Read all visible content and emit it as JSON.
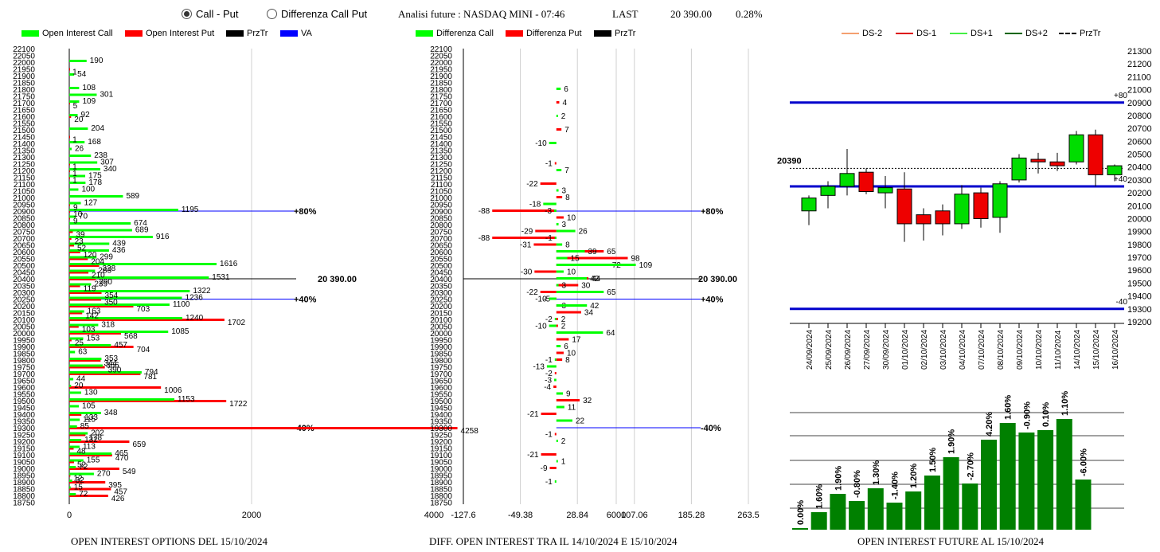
{
  "header": {
    "radio_call_put": "Call - Put",
    "radio_diff": "Differenza Call Put",
    "analisi": "Analisi future : NASDAQ MINI - 07:46",
    "last_label": "LAST",
    "last_value": "20 390.00",
    "last_pct": "0.28%"
  },
  "legend1": {
    "oi_call": "Open Interest Call",
    "oi_put": "Open Interest Put",
    "prztr": "PrzTr",
    "va": "VA"
  },
  "legend2": {
    "diff_call": "Differenza Call",
    "diff_put": "Differenza Put",
    "prztr": "PrzTr"
  },
  "legend3": {
    "ds_m2": "DS-2",
    "ds_m1": "DS-1",
    "ds_p1": "DS+1",
    "ds_p2": "DS+2",
    "prztr": "PrzTr"
  },
  "footer": {
    "left": "OPEN INTEREST OPTIONS DEL 15/10/2024",
    "center": "DIFF. OPEN INTEREST TRA IL 14/10/2024 E 15/10/2024",
    "right": "OPEN INTEREST FUTURE AL 15/10/2024"
  },
  "colors": {
    "call": "#00ff00",
    "put": "#ff0000",
    "va": "#0000ff",
    "bar": "#008000",
    "candle_up": "#00dd00",
    "candle_down": "#ee0000"
  },
  "chart_data": [
    {
      "type": "bar",
      "orientation": "horizontal",
      "strikes_ticks": [
        22100,
        22050,
        22000,
        21950,
        21900,
        21850,
        21800,
        21750,
        21700,
        21650,
        21600,
        21550,
        21500,
        21450,
        21400,
        21350,
        21300,
        21250,
        21200,
        21150,
        21100,
        21050,
        21000,
        20950,
        20900,
        20850,
        20800,
        20750,
        20700,
        20650,
        20600,
        20550,
        20500,
        20450,
        20400,
        20350,
        20300,
        20250,
        20200,
        20150,
        20100,
        20050,
        20000,
        19950,
        19900,
        19850,
        19800,
        19750,
        19700,
        19650,
        19600,
        19550,
        19500,
        19450,
        19400,
        19350,
        19300,
        19250,
        19200,
        19150,
        19100,
        19050,
        19000,
        18950,
        18900,
        18850,
        18800,
        18750
      ],
      "x_ticks": [
        "0",
        "2000",
        "4000",
        "6000"
      ],
      "xlim": [
        0,
        7000
      ],
      "call": [
        [
          22000,
          190
        ],
        [
          21900,
          54
        ],
        [
          21800,
          108
        ],
        [
          21750,
          301
        ],
        [
          21700,
          109
        ],
        [
          21600,
          92
        ],
        [
          21500,
          204
        ],
        [
          21400,
          168
        ],
        [
          21350,
          26
        ],
        [
          21300,
          238
        ],
        [
          21250,
          307
        ],
        [
          21200,
          340
        ],
        [
          21150,
          175
        ],
        [
          21100,
          178
        ],
        [
          21050,
          100
        ],
        [
          21000,
          589
        ],
        [
          20950,
          127
        ],
        [
          20900,
          1195
        ],
        [
          20850,
          70
        ],
        [
          20800,
          674
        ],
        [
          20750,
          689
        ],
        [
          20700,
          916
        ],
        [
          20650,
          439
        ],
        [
          20600,
          436
        ],
        [
          20550,
          299
        ],
        [
          20500,
          1616
        ],
        [
          20450,
          283
        ],
        [
          20400,
          1531
        ],
        [
          20350,
          239
        ],
        [
          20300,
          1322
        ],
        [
          20250,
          1236
        ],
        [
          20200,
          1100
        ],
        [
          20150,
          163
        ],
        [
          20100,
          1240
        ],
        [
          20050,
          318
        ],
        [
          20000,
          1085
        ],
        [
          19950,
          153
        ],
        [
          19900,
          457
        ],
        [
          19850,
          63
        ],
        [
          19800,
          353
        ],
        [
          19750,
          366
        ],
        [
          19700,
          794
        ],
        [
          19650,
          44
        ],
        [
          19600,
          20
        ],
        [
          19550,
          130
        ],
        [
          19500,
          1153
        ],
        [
          19450,
          105
        ],
        [
          19400,
          348
        ],
        [
          19350,
          115
        ],
        [
          19300,
          85
        ],
        [
          19250,
          202
        ],
        [
          19200,
          132
        ],
        [
          19150,
          113
        ],
        [
          19100,
          465
        ],
        [
          19050,
          155
        ],
        [
          19000,
          72
        ],
        [
          18950,
          270
        ],
        [
          18900,
          32
        ],
        [
          18850,
          15
        ],
        [
          18800,
          72
        ]
      ],
      "put": [
        [
          21950,
          1
        ],
        [
          21700,
          5
        ],
        [
          21600,
          20
        ],
        [
          21450,
          1
        ],
        [
          21250,
          1
        ],
        [
          21200,
          1
        ],
        [
          21150,
          1
        ],
        [
          20950,
          9
        ],
        [
          20900,
          10
        ],
        [
          20850,
          9
        ],
        [
          20750,
          39
        ],
        [
          20700,
          23
        ],
        [
          20650,
          52
        ],
        [
          20600,
          120
        ],
        [
          20550,
          204
        ],
        [
          20500,
          328
        ],
        [
          20450,
          210
        ],
        [
          20400,
          290
        ],
        [
          20350,
          119
        ],
        [
          20300,
          354
        ],
        [
          20250,
          350
        ],
        [
          20200,
          703
        ],
        [
          20150,
          142
        ],
        [
          20100,
          1702
        ],
        [
          20050,
          103
        ],
        [
          20000,
          568
        ],
        [
          19950,
          25
        ],
        [
          19900,
          704
        ],
        [
          19800,
          344
        ],
        [
          19750,
          390
        ],
        [
          19700,
          781
        ],
        [
          19600,
          1006
        ],
        [
          19500,
          1722
        ],
        [
          19400,
          133
        ],
        [
          19300,
          4258
        ],
        [
          19250,
          178
        ],
        [
          19200,
          659
        ],
        [
          19150,
          48
        ],
        [
          19100,
          470
        ],
        [
          19050,
          52
        ],
        [
          19000,
          549
        ],
        [
          18950,
          12
        ],
        [
          18900,
          395
        ],
        [
          18850,
          457
        ],
        [
          18800,
          426
        ]
      ],
      "lines": [
        {
          "strike": 20900,
          "label": "+80%",
          "color": "#0000ff"
        },
        {
          "strike": 20400,
          "label": "20 390.00",
          "color": "#000000"
        },
        {
          "strike": 20250,
          "label": "+40%",
          "color": "#0000ff"
        },
        {
          "strike": 19300,
          "label": "-40%",
          "color": "#0000ff"
        }
      ]
    },
    {
      "type": "bar",
      "orientation": "horizontal",
      "x_ticks": [
        "-127.6",
        "-49.38",
        "28.84",
        "107.06",
        "185.28",
        "263.5"
      ],
      "xlim": [
        -127.6,
        263.5
      ],
      "diff": [
        [
          21800,
          6
        ],
        [
          21700,
          4
        ],
        [
          21600,
          2
        ],
        [
          21500,
          7
        ],
        [
          21400,
          -10
        ],
        [
          21250,
          -1
        ],
        [
          21200,
          7
        ],
        [
          21100,
          -22
        ],
        [
          21050,
          3
        ],
        [
          21000,
          8
        ],
        [
          20950,
          -18
        ],
        [
          20900,
          -88
        ],
        [
          20900,
          -3
        ],
        [
          20850,
          10
        ],
        [
          20800,
          3
        ],
        [
          20750,
          -29
        ],
        [
          20750,
          26
        ],
        [
          20700,
          -88
        ],
        [
          20700,
          -1
        ],
        [
          20650,
          -31
        ],
        [
          20650,
          8
        ],
        [
          20600,
          65
        ],
        [
          20600,
          39
        ],
        [
          20550,
          98
        ],
        [
          20550,
          15
        ],
        [
          20500,
          72
        ],
        [
          20500,
          109
        ],
        [
          20450,
          -30
        ],
        [
          20450,
          10
        ],
        [
          20400,
          44
        ],
        [
          20400,
          42
        ],
        [
          20350,
          30
        ],
        [
          20350,
          3
        ],
        [
          20300,
          -22
        ],
        [
          20300,
          65
        ],
        [
          20250,
          -5
        ],
        [
          20250,
          -10
        ],
        [
          20200,
          3
        ],
        [
          20200,
          42
        ],
        [
          20150,
          34
        ],
        [
          20100,
          -2
        ],
        [
          20100,
          2
        ],
        [
          20050,
          -10
        ],
        [
          20050,
          2
        ],
        [
          20000,
          64
        ],
        [
          19950,
          17
        ],
        [
          19900,
          6
        ],
        [
          19850,
          10
        ],
        [
          19800,
          -1
        ],
        [
          19800,
          8
        ],
        [
          19750,
          -13
        ],
        [
          19700,
          -2
        ],
        [
          19650,
          -3
        ],
        [
          19600,
          -4
        ],
        [
          19550,
          9
        ],
        [
          19500,
          32
        ],
        [
          19450,
          11
        ],
        [
          19400,
          -21
        ],
        [
          19350,
          22
        ],
        [
          19250,
          -1
        ],
        [
          19200,
          2
        ],
        [
          19100,
          -21
        ],
        [
          19050,
          1
        ],
        [
          19000,
          -9
        ],
        [
          18900,
          -1
        ]
      ],
      "lines": [
        {
          "strike": 20900,
          "label": "+80%"
        },
        {
          "strike": 20400,
          "label": "20 390.00"
        },
        {
          "strike": 20250,
          "label": "+40%"
        },
        {
          "strike": 19300,
          "label": "-40%"
        }
      ]
    },
    {
      "type": "candlestick",
      "dates": [
        "24/09/2024",
        "25/09/2024",
        "26/09/2024",
        "27/09/2024",
        "30/09/2024",
        "01/10/2024",
        "02/10/2024",
        "03/10/2024",
        "04/10/2024",
        "07/10/2024",
        "08/10/2024",
        "09/10/2024",
        "10/10/2024",
        "11/10/2024",
        "14/10/2024",
        "15/10/2024",
        "16/10/2024"
      ],
      "ohlc": [
        [
          20060,
          20160,
          19950,
          20180
        ],
        [
          20180,
          20250,
          20080,
          20290
        ],
        [
          20250,
          20350,
          20180,
          20540
        ],
        [
          20360,
          20210,
          20190,
          20390
        ],
        [
          20200,
          20240,
          20080,
          20330
        ],
        [
          20230,
          19960,
          19820,
          20360
        ],
        [
          20030,
          19960,
          19830,
          20080
        ],
        [
          20060,
          19960,
          19870,
          20110
        ],
        [
          19960,
          20190,
          19920,
          20260
        ],
        [
          20200,
          20000,
          19930,
          20240
        ],
        [
          20010,
          20270,
          19890,
          20290
        ],
        [
          20300,
          20470,
          20280,
          20500
        ],
        [
          20460,
          20440,
          20350,
          20510
        ],
        [
          20440,
          20410,
          20370,
          20510
        ],
        [
          20440,
          20650,
          20420,
          20680
        ],
        [
          20650,
          20340,
          20250,
          20690
        ],
        [
          20340,
          20410,
          20290,
          20420
        ]
      ],
      "y_ticks": [
        21300,
        21200,
        21100,
        21000,
        20900,
        20800,
        20700,
        20600,
        20500,
        20400,
        20300,
        20200,
        20100,
        20000,
        19900,
        19800,
        19700,
        19600,
        19500,
        19400,
        19300,
        19200
      ],
      "ylim": [
        19200,
        21300
      ],
      "current_label": "20390",
      "levels": [
        {
          "value": 20900,
          "label": "+80"
        },
        {
          "value": 20250,
          "label": "+40"
        },
        {
          "value": 19300,
          "label": "-40"
        }
      ]
    },
    {
      "type": "bar",
      "labels": [
        "0.00%",
        "1.60%",
        "1.90%",
        "-0.80%",
        "1.30%",
        "-1.40%",
        "1.20%",
        "1.50%",
        "1.90%",
        "-2.70%",
        "4.20%",
        "1.60%",
        "-0.90%",
        "0.10%",
        "1.10%",
        "-6.00%"
      ],
      "values": [
        2,
        22,
        45,
        36,
        52,
        34,
        48,
        68,
        91,
        58,
        113,
        134,
        122,
        125,
        139,
        63
      ]
    }
  ]
}
